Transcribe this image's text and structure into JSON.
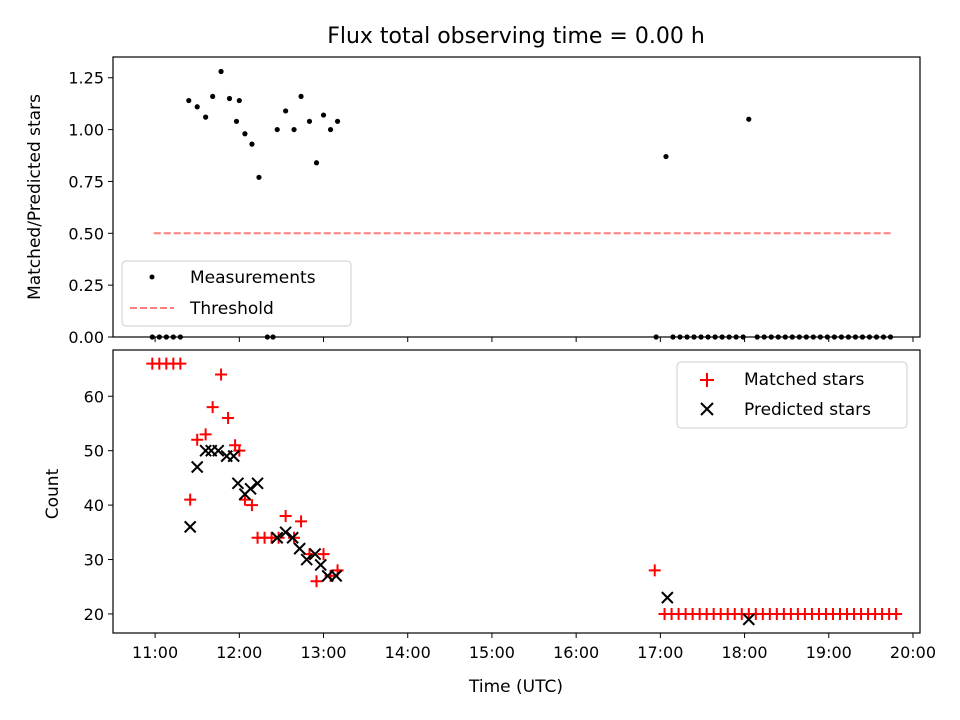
{
  "chart_data": [
    {
      "type": "scatter",
      "title": "Flux total observing time = 0.00 h",
      "xlabel": "",
      "ylabel": "Matched/Predicted stars",
      "xlim": [
        "10:30",
        "20:05"
      ],
      "ylim": [
        0,
        1.35
      ],
      "yticks": [
        "0.00",
        "0.25",
        "0.50",
        "0.75",
        "1.00",
        "1.25"
      ],
      "xticks": [
        "11:00",
        "12:00",
        "13:00",
        "14:00",
        "15:00",
        "16:00",
        "17:00",
        "18:00",
        "19:00",
        "20:00"
      ],
      "xtick_labels_shown": false,
      "legend": {
        "placement": "lower-left",
        "entries": [
          "Measurements",
          "Threshold"
        ]
      },
      "series": [
        {
          "name": "Measurements",
          "marker": "dot",
          "color": "#000000",
          "points": [
            [
              "10:58",
              0
            ],
            [
              "11:03",
              0
            ],
            [
              "11:08",
              0
            ],
            [
              "11:13",
              0
            ],
            [
              "11:18",
              0
            ],
            [
              "11:24",
              1.14
            ],
            [
              "11:30",
              1.11
            ],
            [
              "11:36",
              1.06
            ],
            [
              "11:41",
              1.16
            ],
            [
              "11:47",
              1.28
            ],
            [
              "11:53",
              1.15
            ],
            [
              "11:58",
              1.04
            ],
            [
              "12:00",
              1.14
            ],
            [
              "12:04",
              0.98
            ],
            [
              "12:09",
              0.93
            ],
            [
              "12:14",
              0.77
            ],
            [
              "12:20",
              0
            ],
            [
              "12:24",
              0
            ],
            [
              "12:27",
              1.0
            ],
            [
              "12:33",
              1.09
            ],
            [
              "12:39",
              1.0
            ],
            [
              "12:44",
              1.16
            ],
            [
              "12:50",
              1.04
            ],
            [
              "12:55",
              0.84
            ],
            [
              "13:00",
              1.07
            ],
            [
              "13:05",
              1.0
            ],
            [
              "13:10",
              1.04
            ],
            [
              "16:57",
              0
            ],
            [
              "17:04",
              0.87
            ],
            [
              "17:09",
              0
            ],
            [
              "17:14",
              0
            ],
            [
              "17:19",
              0
            ],
            [
              "17:24",
              0
            ],
            [
              "17:29",
              0
            ],
            [
              "17:34",
              0
            ],
            [
              "17:39",
              0
            ],
            [
              "17:44",
              0
            ],
            [
              "17:49",
              0
            ],
            [
              "17:54",
              0
            ],
            [
              "17:59",
              0
            ],
            [
              "18:03",
              1.05
            ],
            [
              "18:09",
              0
            ],
            [
              "18:14",
              0
            ],
            [
              "18:19",
              0
            ],
            [
              "18:24",
              0
            ],
            [
              "18:29",
              0
            ],
            [
              "18:34",
              0
            ],
            [
              "18:39",
              0
            ],
            [
              "18:44",
              0
            ],
            [
              "18:49",
              0
            ],
            [
              "18:54",
              0
            ],
            [
              "18:59",
              0
            ],
            [
              "19:04",
              0
            ],
            [
              "19:09",
              0
            ],
            [
              "19:14",
              0
            ],
            [
              "19:19",
              0
            ],
            [
              "19:24",
              0
            ],
            [
              "19:29",
              0
            ],
            [
              "19:34",
              0
            ],
            [
              "19:39",
              0
            ],
            [
              "19:44",
              0
            ]
          ]
        },
        {
          "name": "Threshold",
          "style": "dashed",
          "color": "#ff7f7f",
          "x": [
            "10:59",
            "19:44"
          ],
          "y": [
            0.5,
            0.5
          ]
        }
      ]
    },
    {
      "type": "scatter",
      "title": "",
      "xlabel": "Time (UTC)",
      "ylabel": "Count",
      "xlim": [
        "10:30",
        "20:05"
      ],
      "ylim": [
        16.5,
        68.5
      ],
      "yticks": [
        "20",
        "30",
        "40",
        "50",
        "60"
      ],
      "xticks": [
        "11:00",
        "12:00",
        "13:00",
        "14:00",
        "15:00",
        "16:00",
        "17:00",
        "18:00",
        "19:00",
        "20:00"
      ],
      "legend": {
        "placement": "top-right",
        "entries": [
          "Matched stars",
          "Predicted stars"
        ]
      },
      "series": [
        {
          "name": "Matched stars",
          "marker": "plus",
          "color": "#ff0000",
          "points": [
            [
              "10:58",
              66
            ],
            [
              "11:03",
              66
            ],
            [
              "11:08",
              66
            ],
            [
              "11:13",
              66
            ],
            [
              "11:18",
              66
            ],
            [
              "11:25",
              41
            ],
            [
              "11:30",
              52
            ],
            [
              "11:36",
              53
            ],
            [
              "11:41",
              58
            ],
            [
              "11:47",
              64
            ],
            [
              "11:52",
              56
            ],
            [
              "11:57",
              51
            ],
            [
              "12:00",
              50
            ],
            [
              "12:04",
              41
            ],
            [
              "12:09",
              40
            ],
            [
              "12:13",
              34
            ],
            [
              "12:18",
              34
            ],
            [
              "12:23",
              34
            ],
            [
              "12:28",
              34
            ],
            [
              "12:33",
              38
            ],
            [
              "12:39",
              34
            ],
            [
              "12:44",
              37
            ],
            [
              "12:50",
              31
            ],
            [
              "12:55",
              26
            ],
            [
              "13:00",
              31
            ],
            [
              "13:05",
              27
            ],
            [
              "13:10",
              28
            ],
            [
              "16:56",
              28
            ],
            [
              "17:03",
              20
            ],
            [
              "17:08",
              20
            ],
            [
              "17:13",
              20
            ],
            [
              "17:18",
              20
            ],
            [
              "17:23",
              20
            ],
            [
              "17:28",
              20
            ],
            [
              "17:33",
              20
            ],
            [
              "17:38",
              20
            ],
            [
              "17:43",
              20
            ],
            [
              "17:48",
              20
            ],
            [
              "17:53",
              20
            ],
            [
              "17:58",
              20
            ],
            [
              "18:03",
              20
            ],
            [
              "18:08",
              20
            ],
            [
              "18:13",
              20
            ],
            [
              "18:18",
              20
            ],
            [
              "18:23",
              20
            ],
            [
              "18:28",
              20
            ],
            [
              "18:33",
              20
            ],
            [
              "18:38",
              20
            ],
            [
              "18:43",
              20
            ],
            [
              "18:48",
              20
            ],
            [
              "18:53",
              20
            ],
            [
              "18:58",
              20
            ],
            [
              "19:03",
              20
            ],
            [
              "19:08",
              20
            ],
            [
              "19:13",
              20
            ],
            [
              "19:18",
              20
            ],
            [
              "19:23",
              20
            ],
            [
              "19:28",
              20
            ],
            [
              "19:33",
              20
            ],
            [
              "19:38",
              20
            ],
            [
              "19:43",
              20
            ],
            [
              "19:48",
              20
            ]
          ]
        },
        {
          "name": "Predicted stars",
          "marker": "x",
          "color": "#000000",
          "points": [
            [
              "11:25",
              36
            ],
            [
              "11:30",
              47
            ],
            [
              "11:36",
              50
            ],
            [
              "11:40",
              50
            ],
            [
              "11:45",
              50
            ],
            [
              "11:51",
              49
            ],
            [
              "11:56",
              49
            ],
            [
              "11:59",
              44
            ],
            [
              "12:04",
              42
            ],
            [
              "12:08",
              43
            ],
            [
              "12:13",
              44
            ],
            [
              "12:27",
              34
            ],
            [
              "12:33",
              35
            ],
            [
              "12:38",
              34
            ],
            [
              "12:43",
              32
            ],
            [
              "12:48",
              30
            ],
            [
              "12:54",
              31
            ],
            [
              "12:58",
              29
            ],
            [
              "13:03",
              27
            ],
            [
              "13:09",
              27
            ],
            [
              "17:05",
              23
            ],
            [
              "18:03",
              19
            ]
          ]
        }
      ]
    }
  ]
}
